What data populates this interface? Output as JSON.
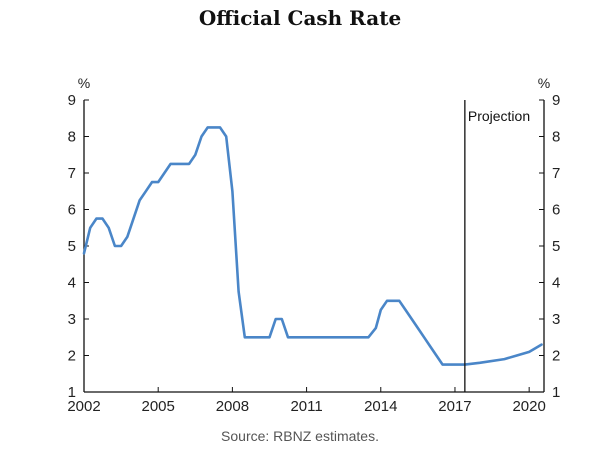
{
  "chart_data": {
    "type": "line",
    "title": "Official Cash Rate",
    "source": "Source: RBNZ estimates.",
    "ylabel_left": "%",
    "ylabel_right": "%",
    "xlim": [
      2002,
      2020.6
    ],
    "ylim": [
      1,
      9
    ],
    "yticks": [
      1,
      2,
      3,
      4,
      5,
      6,
      7,
      8,
      9
    ],
    "xticks": [
      2002,
      2005,
      2008,
      2011,
      2014,
      2017,
      2020
    ],
    "xtick_labels": [
      "2002",
      "2005",
      "2008",
      "2011",
      "2014",
      "2017",
      "2020"
    ],
    "projection_start": 2017.4,
    "projection_label": "Projection",
    "line_color": "#4a86c8",
    "series": [
      {
        "name": "Official Cash Rate",
        "x": [
          2002.0,
          2002.25,
          2002.5,
          2002.75,
          2003.0,
          2003.25,
          2003.5,
          2003.75,
          2004.0,
          2004.25,
          2004.5,
          2004.75,
          2005.0,
          2005.25,
          2005.5,
          2005.75,
          2006.0,
          2006.25,
          2006.5,
          2006.75,
          2007.0,
          2007.25,
          2007.5,
          2007.75,
          2008.0,
          2008.25,
          2008.5,
          2008.75,
          2009.0,
          2009.25,
          2009.5,
          2009.75,
          2010.0,
          2010.25,
          2010.5,
          2010.75,
          2011.0,
          2011.5,
          2012.0,
          2012.5,
          2013.0,
          2013.5,
          2013.8,
          2014.0,
          2014.25,
          2014.5,
          2014.75,
          2015.0,
          2015.25,
          2015.5,
          2015.75,
          2016.0,
          2016.25,
          2016.5,
          2016.75,
          2017.0,
          2017.4,
          2018.0,
          2019.0,
          2019.5,
          2020.0,
          2020.5
        ],
        "y": [
          4.8,
          5.5,
          5.75,
          5.75,
          5.5,
          5.0,
          5.0,
          5.25,
          5.75,
          6.25,
          6.5,
          6.75,
          6.75,
          7.0,
          7.25,
          7.25,
          7.25,
          7.25,
          7.5,
          8.0,
          8.25,
          8.25,
          8.25,
          8.0,
          6.5,
          3.75,
          2.5,
          2.5,
          2.5,
          2.5,
          2.5,
          3.0,
          3.0,
          2.5,
          2.5,
          2.5,
          2.5,
          2.5,
          2.5,
          2.5,
          2.5,
          2.5,
          2.75,
          3.25,
          3.5,
          3.5,
          3.5,
          3.25,
          3.0,
          2.75,
          2.5,
          2.25,
          2.0,
          1.75,
          1.75,
          1.75,
          1.75,
          1.8,
          1.9,
          2.0,
          2.1,
          2.3
        ]
      }
    ]
  }
}
